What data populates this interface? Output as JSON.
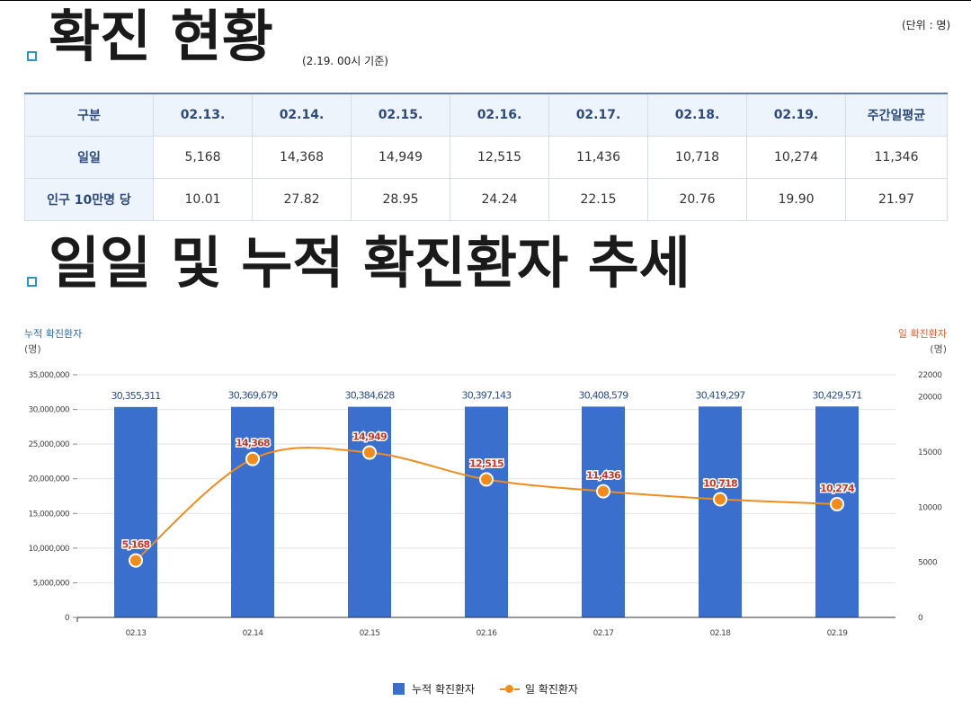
{
  "section1": {
    "title": "확진 현황",
    "basis": "(2.19. 00시 기준)",
    "unit": "(단위 : 명)"
  },
  "table": {
    "headers": [
      "구분",
      "02.13.",
      "02.14.",
      "02.15.",
      "02.16.",
      "02.17.",
      "02.18.",
      "02.19.",
      "주간일평균"
    ],
    "rows": [
      {
        "label": "일일",
        "values": [
          "5,168",
          "14,368",
          "14,949",
          "12,515",
          "11,436",
          "10,718",
          "10,274",
          "11,346"
        ]
      },
      {
        "label": "인구 10만명 당",
        "values": [
          "10.01",
          "27.82",
          "28.95",
          "24.24",
          "22.15",
          "20.76",
          "19.90",
          "21.97"
        ]
      }
    ]
  },
  "section2": {
    "title": "일일 및 누적 확진환자 추세"
  },
  "colors": {
    "bar": "#3a6fce",
    "line": "#f08c1e",
    "left_axis_title": "#2e6aa6",
    "right_axis_title": "#e05a2a",
    "data_label": "#c0392b"
  },
  "chart_data": {
    "type": "bar",
    "categories": [
      "02.13",
      "02.14",
      "02.15",
      "02.16",
      "02.17",
      "02.18",
      "02.19"
    ],
    "series": [
      {
        "name": "누적 확진환자",
        "type": "bar",
        "axis": "left",
        "values": [
          30355311,
          30369679,
          30384628,
          30397143,
          30408579,
          30419297,
          30429571
        ],
        "labels": [
          "30,355,311",
          "30,369,679",
          "30,384,628",
          "30,397,143",
          "30,408,579",
          "30,419,297",
          "30,429,571"
        ]
      },
      {
        "name": "일 확진환자",
        "type": "line",
        "axis": "right",
        "values": [
          5168,
          14368,
          14949,
          12515,
          11436,
          10718,
          10274
        ],
        "labels": [
          "5,168",
          "14,368",
          "14,949",
          "12,515",
          "11,436",
          "10,718",
          "10,274"
        ]
      }
    ],
    "left_axis": {
      "title": "누적 확진환자",
      "unit": "(명)",
      "range": [
        0,
        35000000
      ],
      "ticks": [
        0,
        5000000,
        10000000,
        15000000,
        20000000,
        25000000,
        30000000,
        35000000
      ],
      "tick_labels": [
        "0",
        "5,000,000",
        "10,000,000",
        "15,000,000",
        "20,000,000",
        "25,000,000",
        "30,000,000",
        "35,000,000"
      ]
    },
    "right_axis": {
      "title": "일 확진환자",
      "unit": "(명)",
      "range": [
        0,
        22000
      ],
      "ticks": [
        0,
        5000,
        10000,
        15000,
        20000,
        22000
      ],
      "tick_labels": [
        "0",
        "5000",
        "10000",
        "15000",
        "20000",
        "22000"
      ]
    },
    "grid": true,
    "legend": "bottom"
  }
}
